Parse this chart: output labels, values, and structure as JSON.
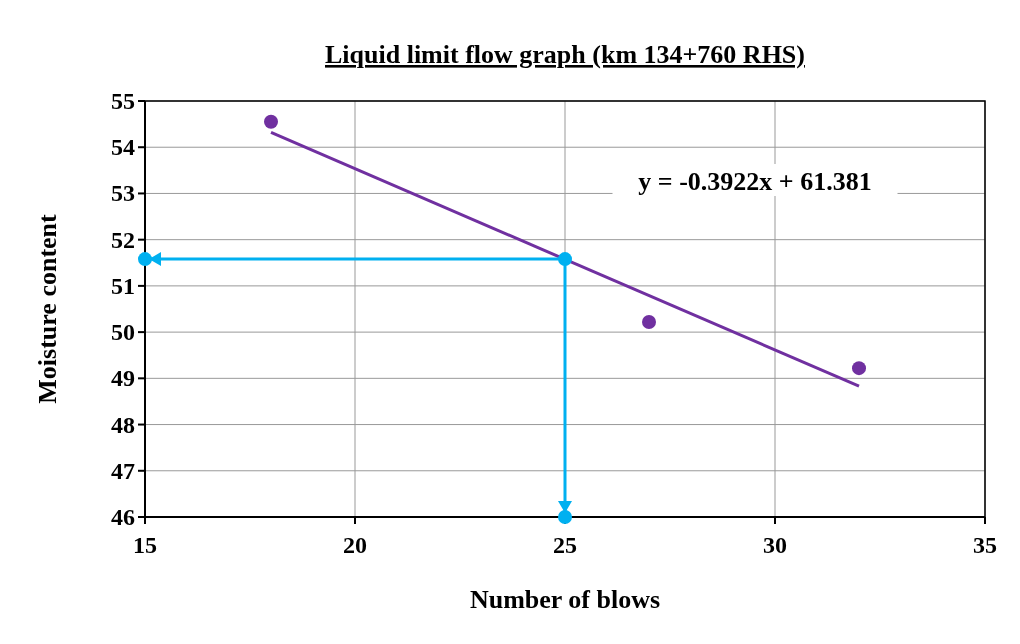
{
  "chart_data": {
    "type": "scatter",
    "title": "Liquid limit flow graph (km 134+760 RHS)",
    "xlabel": "Number of blows",
    "ylabel": "Moisture content",
    "xlim": [
      15,
      35
    ],
    "xticks": [
      15,
      20,
      25,
      30,
      35
    ],
    "ylim": [
      46,
      55
    ],
    "yticks": [
      46,
      47,
      48,
      49,
      50,
      51,
      52,
      53,
      54,
      55
    ],
    "grid": true,
    "series": [
      {
        "color": "#7030a0",
        "marker": "circle",
        "x": [
          18,
          27,
          32
        ],
        "values": [
          54.55,
          50.22,
          49.22
        ]
      },
      {
        "type": "line",
        "color": "#7030a0",
        "marker": "none",
        "x": [
          18,
          32
        ],
        "values": [
          54.32,
          48.83
        ]
      },
      {
        "type": "line",
        "color": "#00b0f0",
        "marker": "circle",
        "x": [
          15,
          25,
          25
        ],
        "values": [
          51.58,
          51.58,
          46
        ]
      }
    ],
    "annotations": [
      "y = -0.3922x + 61.381"
    ]
  }
}
